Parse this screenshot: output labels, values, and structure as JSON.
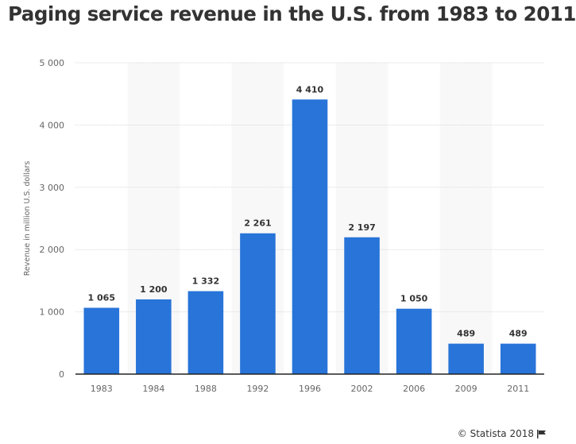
{
  "chart_data": {
    "type": "bar",
    "title": "Paging service revenue in the U.S. from 1983 to 2011",
    "xlabel": "",
    "ylabel": "Revenue in million U.S. dollars",
    "categories": [
      "1983",
      "1984",
      "1988",
      "1992",
      "1996",
      "2002",
      "2006",
      "2009",
      "2011"
    ],
    "values": [
      1065,
      1200,
      1332,
      2261,
      4410,
      2197,
      1050,
      489,
      489
    ],
    "data_labels": [
      "1 065",
      "1 200",
      "1 332",
      "2 261",
      "4 410",
      "2 197",
      "1 050",
      "489",
      "489"
    ],
    "ylim": [
      0,
      5000
    ],
    "yticks": [
      0,
      1000,
      2000,
      3000,
      4000,
      5000
    ],
    "ytick_labels": [
      "0",
      "1 000",
      "2 000",
      "3 000",
      "4 000",
      "5 000"
    ],
    "grid": true,
    "alternating_bands": true,
    "bar_color": "#2874d9",
    "band_color": "#f8f8f8",
    "legend": "none"
  },
  "credit": {
    "text": "© Statista 2018",
    "icon": "flag-icon"
  }
}
